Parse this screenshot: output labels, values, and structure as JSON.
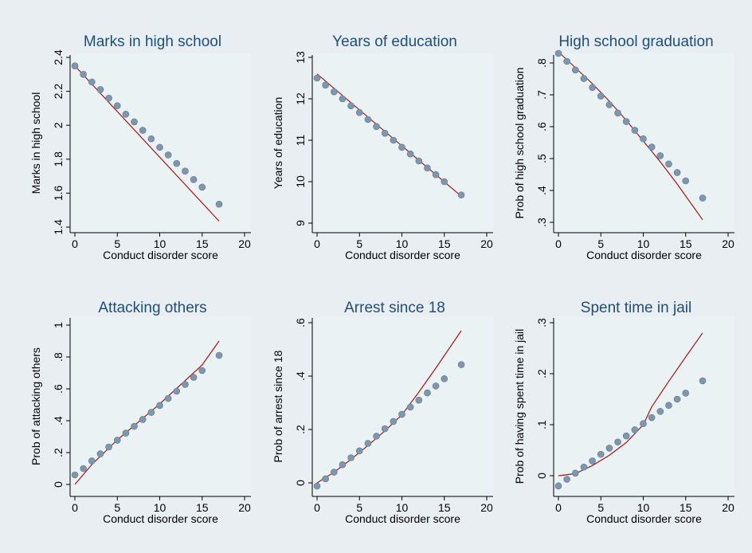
{
  "figure": {
    "background": "#e9eef3",
    "panel_background": "#eaf2f3",
    "axis_color": "#000000",
    "point_color": "#7f96ad",
    "point_edge": "#5d7891",
    "line_color": "#a01818",
    "title_color": "#1f4e79"
  },
  "chart_data": [
    {
      "type": "scatter",
      "title": "Marks in high school",
      "xlabel": "Conduct disorder score",
      "ylabel": "Marks in high school",
      "xlim": [
        0,
        20
      ],
      "ylim": [
        1.4,
        2.4
      ],
      "xticks": [
        0,
        5,
        10,
        15,
        20
      ],
      "yticks": [
        1.4,
        1.6,
        1.8,
        2,
        2.2,
        2.4
      ],
      "ytick_labels": [
        "1.4",
        "1.6",
        "1.8",
        "2",
        "2.2",
        "2.4"
      ],
      "grid": false,
      "series": [
        {
          "kind": "points",
          "x": [
            0,
            1,
            2,
            3,
            4,
            5,
            6,
            7,
            8,
            9,
            10,
            11,
            12,
            13,
            14,
            15,
            17
          ],
          "y": [
            2.35,
            2.3,
            2.255,
            2.21,
            2.16,
            2.115,
            2.065,
            2.02,
            1.97,
            1.92,
            1.87,
            1.825,
            1.775,
            1.73,
            1.68,
            1.635,
            1.535
          ]
        },
        {
          "kind": "line",
          "x": [
            0,
            17
          ],
          "y": [
            2.35,
            1.435
          ]
        }
      ]
    },
    {
      "type": "scatter",
      "title": "Years of education",
      "xlabel": "Conduct disorder score",
      "ylabel": "Years of education",
      "xlim": [
        0,
        20
      ],
      "ylim": [
        9,
        13
      ],
      "xticks": [
        0,
        5,
        10,
        15,
        20
      ],
      "yticks": [
        9,
        10,
        11,
        12,
        13
      ],
      "ytick_labels": [
        "9",
        "10",
        "11",
        "12",
        "13"
      ],
      "grid": false,
      "series": [
        {
          "kind": "points",
          "x": [
            0,
            1,
            2,
            3,
            4,
            5,
            6,
            7,
            8,
            9,
            10,
            11,
            12,
            13,
            14,
            15,
            17
          ],
          "y": [
            12.5,
            12.33,
            12.17,
            12.0,
            11.83,
            11.67,
            11.5,
            11.33,
            11.17,
            11.0,
            10.83,
            10.67,
            10.5,
            10.33,
            10.17,
            10.0,
            9.68
          ]
        },
        {
          "kind": "line",
          "x": [
            0,
            17
          ],
          "y": [
            12.6,
            9.65
          ]
        }
      ]
    },
    {
      "type": "scatter",
      "title": "High school graduation",
      "xlabel": "Conduct disorder score",
      "ylabel": "Prob of high school graduation",
      "xlim": [
        0,
        20
      ],
      "ylim": [
        0.3,
        0.85
      ],
      "xticks": [
        0,
        5,
        10,
        15,
        20
      ],
      "yticks": [
        0.3,
        0.4,
        0.5,
        0.6,
        0.7,
        0.8
      ],
      "ytick_labels": [
        ".3",
        ".4",
        ".5",
        ".6",
        ".7",
        ".8"
      ],
      "grid": false,
      "series": [
        {
          "kind": "points",
          "x": [
            0,
            1,
            2,
            3,
            4,
            5,
            6,
            7,
            8,
            9,
            10,
            11,
            12,
            13,
            14,
            15,
            17
          ],
          "y": [
            0.83,
            0.805,
            0.778,
            0.751,
            0.723,
            0.696,
            0.669,
            0.643,
            0.616,
            0.589,
            0.562,
            0.536,
            0.509,
            0.483,
            0.456,
            0.43,
            0.376
          ]
        },
        {
          "kind": "line",
          "x": [
            0,
            2,
            4,
            6,
            8,
            10,
            12,
            14,
            17
          ],
          "y": [
            0.835,
            0.785,
            0.735,
            0.68,
            0.62,
            0.555,
            0.49,
            0.42,
            0.308
          ]
        }
      ]
    },
    {
      "type": "scatter",
      "title": "Attacking others",
      "xlabel": "Conduct disorder score",
      "ylabel": "Prob of attacking others",
      "xlim": [
        0,
        20
      ],
      "ylim": [
        0,
        1
      ],
      "xticks": [
        0,
        5,
        10,
        15,
        20
      ],
      "yticks": [
        0,
        0.2,
        0.4,
        0.6,
        0.8,
        1
      ],
      "ytick_labels": [
        "0",
        ".2",
        ".4",
        ".6",
        ".8",
        "1"
      ],
      "grid": false,
      "series": [
        {
          "kind": "points",
          "x": [
            0,
            1,
            2,
            3,
            4,
            5,
            6,
            7,
            8,
            9,
            10,
            11,
            12,
            13,
            14,
            15,
            17
          ],
          "y": [
            0.06,
            0.1,
            0.148,
            0.192,
            0.235,
            0.278,
            0.322,
            0.365,
            0.408,
            0.452,
            0.496,
            0.54,
            0.585,
            0.628,
            0.672,
            0.715,
            0.81
          ]
        },
        {
          "kind": "line",
          "x": [
            0,
            2,
            5,
            10,
            15,
            17
          ],
          "y": [
            0.0,
            0.125,
            0.28,
            0.505,
            0.75,
            0.9
          ]
        }
      ]
    },
    {
      "type": "scatter",
      "title": "Arrest since 18",
      "xlabel": "Conduct disorder score",
      "ylabel": "Prob of arrest since 18",
      "xlim": [
        0,
        20
      ],
      "ylim": [
        0,
        0.6
      ],
      "xticks": [
        0,
        5,
        10,
        15,
        20
      ],
      "yticks": [
        0,
        0.2,
        0.4,
        0.6
      ],
      "ytick_labels": [
        "0",
        ".2",
        ".4",
        ".6"
      ],
      "grid": false,
      "series": [
        {
          "kind": "points",
          "x": [
            0,
            1,
            2,
            3,
            4,
            5,
            6,
            7,
            8,
            9,
            10,
            11,
            12,
            13,
            14,
            15,
            17
          ],
          "y": [
            -0.012,
            0.015,
            0.04,
            0.068,
            0.094,
            0.12,
            0.148,
            0.175,
            0.203,
            0.23,
            0.257,
            0.284,
            0.31,
            0.337,
            0.363,
            0.39,
            0.443
          ]
        },
        {
          "kind": "line",
          "x": [
            0,
            2,
            4,
            6,
            8,
            10,
            12,
            14,
            17
          ],
          "y": [
            0.0,
            0.04,
            0.088,
            0.14,
            0.195,
            0.255,
            0.34,
            0.43,
            0.57
          ]
        }
      ]
    },
    {
      "type": "scatter",
      "title": "Spent time in jail",
      "xlabel": "Conduct disorder score",
      "ylabel": "Prob of having spent time in jail",
      "xlim": [
        0,
        20
      ],
      "ylim": [
        0,
        0.3
      ],
      "xticks": [
        0,
        5,
        10,
        15,
        20
      ],
      "yticks": [
        0,
        0.1,
        0.2,
        0.3
      ],
      "ytick_labels": [
        "0",
        ".1",
        ".2",
        ".3"
      ],
      "grid": false,
      "series": [
        {
          "kind": "points",
          "x": [
            0,
            1,
            2,
            3,
            4,
            5,
            6,
            7,
            8,
            9,
            10,
            11,
            12,
            13,
            14,
            15,
            17
          ],
          "y": [
            -0.02,
            -0.007,
            0.005,
            0.017,
            0.029,
            0.042,
            0.054,
            0.066,
            0.078,
            0.09,
            0.102,
            0.114,
            0.126,
            0.138,
            0.15,
            0.162,
            0.186
          ]
        },
        {
          "kind": "line",
          "x": [
            0,
            2,
            4,
            6,
            8,
            10,
            11,
            13,
            15,
            17
          ],
          "y": [
            0.0,
            0.004,
            0.02,
            0.04,
            0.065,
            0.1,
            0.135,
            0.185,
            0.233,
            0.28
          ]
        }
      ]
    }
  ]
}
